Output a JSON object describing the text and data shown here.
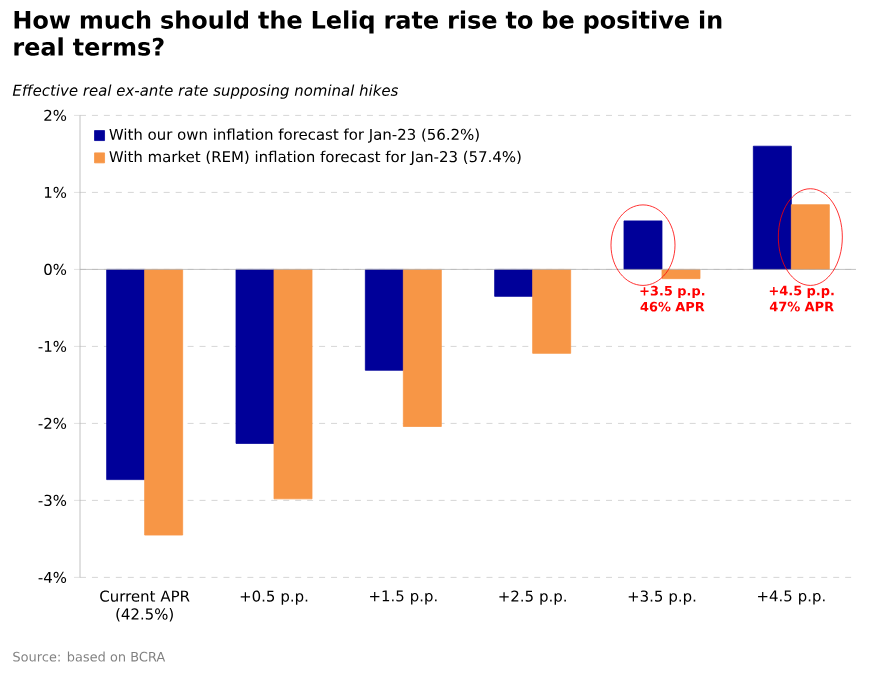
{
  "chart_data": {
    "type": "bar",
    "title": "How much should the Leliq rate rise to be positive in real terms?",
    "subtitle": "Effective real ex-ante rate supposing nominal hikes",
    "categories": [
      "Current APR (42.5%)",
      "+0.5 p.p.",
      "+1.5 p.p.",
      "+2.5 p.p.",
      "+3.5 p.p.",
      "+4.5 p.p."
    ],
    "series": [
      {
        "name": "With our own inflation forecast for Jan-23 (56.2%)",
        "color": "#000099",
        "values": [
          -2.73,
          -2.26,
          -1.31,
          -0.35,
          0.63,
          1.6
        ]
      },
      {
        "name": "With market (REM) inflation forecast for Jan-23 (57.4%)",
        "color": "#f79646",
        "values": [
          -3.45,
          -2.98,
          -2.04,
          -1.09,
          -0.12,
          0.84
        ]
      }
    ],
    "ylim": [
      -4,
      2
    ],
    "yticks": [
      {
        "value": -4,
        "label": "-4%"
      },
      {
        "value": -3,
        "label": "-3%"
      },
      {
        "value": -2,
        "label": "-2%"
      },
      {
        "value": -1,
        "label": "-1%"
      },
      {
        "value": 0,
        "label": "0%"
      },
      {
        "value": 1,
        "label": "1%"
      },
      {
        "value": 2,
        "label": "2%"
      }
    ],
    "grid": "y",
    "legend": "top left",
    "annotations": [
      "+3.5 p.p. 46% APR",
      "+4.5 p.p. 47% APR",
      "Source: based on BCRA"
    ]
  }
}
